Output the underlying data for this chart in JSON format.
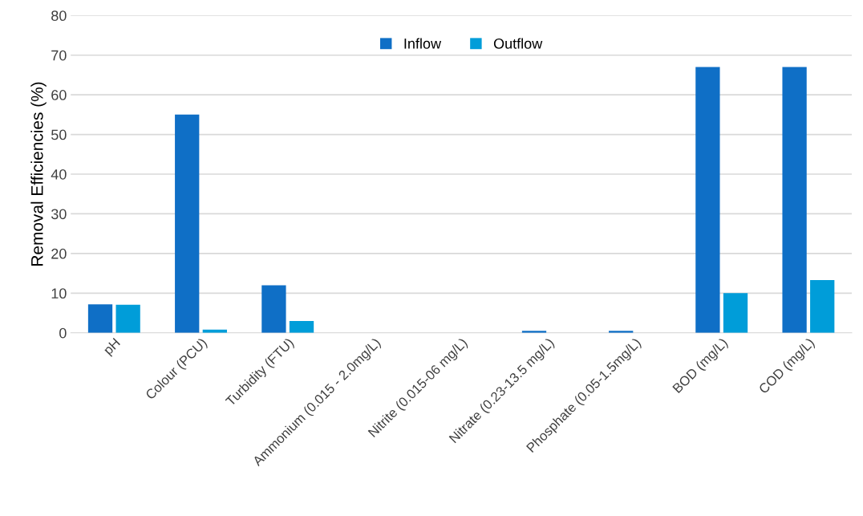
{
  "chart_data": {
    "type": "bar",
    "ylabel": "Removal Efficiencies (%)",
    "categories": [
      "pH",
      "Colour (PCU)",
      "Turbidity (FTU)",
      "Ammonium (0.015 - 2.0mg/L)",
      "Nitrite (0.015-06 mg/L)",
      "Nitrate (0.23-13.5 mg/L)",
      "Phosphate (0.05-1.5mg/L)",
      "BOD (mg/L)",
      "COD (mg/L)"
    ],
    "series": [
      {
        "name": "Inflow",
        "color": "#0f6fc6",
        "values": [
          7.2,
          55,
          12,
          0,
          0,
          0.5,
          0.5,
          67,
          67
        ]
      },
      {
        "name": "Outflow",
        "color": "#009dd9",
        "values": [
          7.1,
          0.8,
          3,
          0,
          0,
          0,
          0,
          10,
          13.3
        ]
      }
    ],
    "ylim": [
      0,
      80
    ],
    "yticks": [
      0,
      10,
      20,
      30,
      40,
      50,
      60,
      70,
      80
    ],
    "grid": "y",
    "legend": "top"
  }
}
